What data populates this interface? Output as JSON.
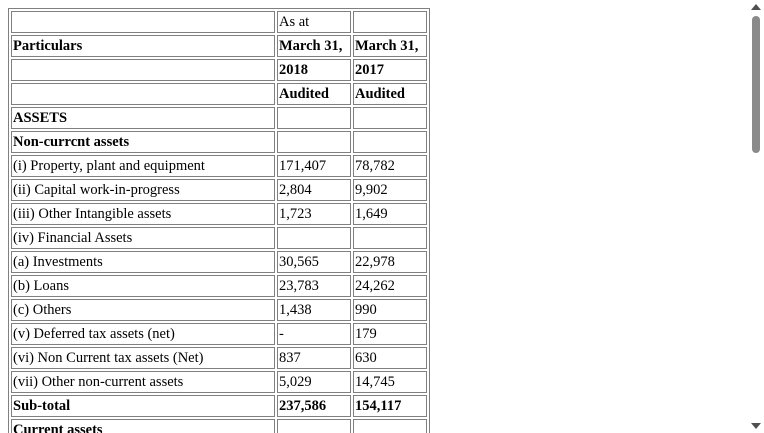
{
  "table": {
    "rows": [
      {
        "cells": [
          "",
          "As at",
          ""
        ],
        "bold": [
          false,
          false,
          false
        ]
      },
      {
        "cells": [
          "Particulars",
          "March 31,",
          "March 31,"
        ],
        "bold": [
          true,
          true,
          true
        ]
      },
      {
        "cells": [
          "",
          "2018",
          "2017"
        ],
        "bold": [
          false,
          true,
          true
        ]
      },
      {
        "cells": [
          "",
          "Audited",
          "Audited"
        ],
        "bold": [
          false,
          true,
          true
        ]
      },
      {
        "cells": [
          "ASSETS",
          "",
          ""
        ],
        "bold": [
          true,
          false,
          false
        ]
      },
      {
        "cells": [
          "Non-currcnt assets",
          "",
          ""
        ],
        "bold": [
          true,
          false,
          false
        ]
      },
      {
        "cells": [
          "(i) Property, plant and equipment",
          "171,407",
          "78,782"
        ],
        "bold": [
          false,
          false,
          false
        ]
      },
      {
        "cells": [
          "(ii) Capital work-in-progress",
          "2,804",
          "9,902"
        ],
        "bold": [
          false,
          false,
          false
        ]
      },
      {
        "cells": [
          "(iii) Other Intangible assets",
          "1,723",
          "1,649"
        ],
        "bold": [
          false,
          false,
          false
        ]
      },
      {
        "cells": [
          "(iv) Financial Assets",
          "",
          ""
        ],
        "bold": [
          false,
          false,
          false
        ]
      },
      {
        "cells": [
          "(a) Investments",
          "30,565",
          "22,978"
        ],
        "bold": [
          false,
          false,
          false
        ]
      },
      {
        "cells": [
          "(b) Loans",
          "23,783",
          "24,262"
        ],
        "bold": [
          false,
          false,
          false
        ]
      },
      {
        "cells": [
          "(c) Others",
          "1,438",
          "990"
        ],
        "bold": [
          false,
          false,
          false
        ]
      },
      {
        "cells": [
          "(v) Deferred tax assets (net)",
          "-",
          "179"
        ],
        "bold": [
          false,
          false,
          false
        ]
      },
      {
        "cells": [
          "(vi) Non Current tax assets (Net)",
          "837",
          "630"
        ],
        "bold": [
          false,
          false,
          false
        ]
      },
      {
        "cells": [
          "(vii) Other non-current assets",
          "5,029",
          "14,745"
        ],
        "bold": [
          false,
          false,
          false
        ]
      },
      {
        "cells": [
          "Sub-total",
          "237,586",
          "154,117"
        ],
        "bold": [
          true,
          true,
          true
        ]
      },
      {
        "cells": [
          "Current assets",
          "",
          ""
        ],
        "bold": [
          true,
          false,
          false
        ]
      }
    ]
  }
}
